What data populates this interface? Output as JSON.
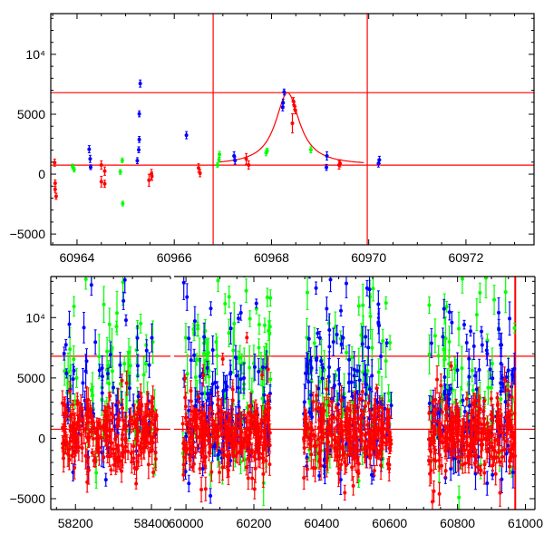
{
  "colors": {
    "red": "#ff0000",
    "green": "#00ff00",
    "blue": "#0000ff",
    "model": "#ff0000",
    "frame": "#000000"
  },
  "chart_data": [
    {
      "type": "scatter",
      "title": "",
      "xlabel": "",
      "ylabel": "",
      "xlim": [
        60963.46,
        60973.4
      ],
      "ylim": [
        -5900,
        13400
      ],
      "xticks": [
        60964,
        60966,
        60968,
        60970,
        60972
      ],
      "xtick_labels": [
        "60964",
        "60966",
        "60968",
        "60970",
        "60972"
      ],
      "yticks": [
        -5000,
        0,
        5000,
        10000
      ],
      "ytick_labels": [
        "−5000",
        "0",
        "5000",
        "10⁴"
      ],
      "hlines": [
        6800,
        750
      ],
      "vlines": [
        60966.8,
        60969.97
      ],
      "model_curve": {
        "type": "lorentzian-peak",
        "baseline": 750,
        "peak": 6800,
        "center": 60968.33,
        "hwhm": 0.3,
        "xrange": [
          60966.9,
          60969.9
        ]
      },
      "series": [
        {
          "name": "red",
          "points": [
            [
              60963.54,
              960,
              300
            ],
            [
              60963.55,
              -760,
              280
            ],
            [
              60963.55,
              -1270,
              250
            ],
            [
              60963.57,
              -1850,
              250
            ],
            [
              60964.5,
              760,
              350
            ],
            [
              60964.5,
              -630,
              450
            ],
            [
              60964.57,
              250,
              350
            ],
            [
              60964.57,
              -810,
              300
            ],
            [
              60965.48,
              -510,
              500
            ],
            [
              60965.53,
              0,
              400
            ],
            [
              60965.54,
              -180,
              350
            ],
            [
              60966.5,
              510,
              350
            ],
            [
              60966.53,
              80,
              300
            ],
            [
              60967.48,
              1270,
              450
            ],
            [
              60967.53,
              760,
              350
            ],
            [
              60968.43,
              4240,
              800
            ],
            [
              60968.45,
              6090,
              300
            ],
            [
              60968.47,
              5710,
              300
            ],
            [
              60968.49,
              5330,
              300
            ],
            [
              60969.39,
              760,
              350
            ],
            [
              60969.41,
              900,
              300
            ]
          ]
        },
        {
          "name": "green",
          "points": [
            [
              60963.91,
              630,
              200
            ],
            [
              60963.94,
              380,
              200
            ],
            [
              60964.89,
              180,
              200
            ],
            [
              60964.93,
              1140,
              200
            ],
            [
              60964.94,
              -2460,
              200
            ],
            [
              60966.89,
              760,
              200
            ],
            [
              60966.92,
              1200,
              200
            ],
            [
              60966.93,
              1650,
              250
            ],
            [
              60967.89,
              1780,
              250
            ],
            [
              60967.91,
              1950,
              200
            ],
            [
              60968.81,
              2030,
              250
            ]
          ]
        },
        {
          "name": "blue",
          "points": [
            [
              60964.25,
              2080,
              300
            ],
            [
              60964.27,
              1270,
              300
            ],
            [
              60964.28,
              580,
              200
            ],
            [
              60965.24,
              1120,
              250
            ],
            [
              60965.27,
              2030,
              250
            ],
            [
              60965.28,
              2890,
              250
            ],
            [
              60965.28,
              5030,
              250
            ],
            [
              60965.3,
              7560,
              300
            ],
            [
              60966.25,
              3250,
              300
            ],
            [
              60967.23,
              1520,
              350
            ],
            [
              60967.25,
              1140,
              300
            ],
            [
              60968.23,
              5580,
              300
            ],
            [
              60968.24,
              5960,
              300
            ],
            [
              60968.26,
              6850,
              250
            ],
            [
              60969.13,
              560,
              250
            ],
            [
              60969.14,
              1520,
              350
            ],
            [
              60970.2,
              890,
              300
            ],
            [
              60970.22,
              1190,
              300
            ]
          ]
        }
      ]
    },
    {
      "type": "scatter",
      "title": "",
      "xlabel": "",
      "ylabel": "",
      "broken_x_axis": true,
      "segments": [
        {
          "xlim": [
            58135,
            58450
          ],
          "xticks": [
            58200,
            58400
          ],
          "xtick_labels": [
            "58200",
            "58400"
          ]
        },
        {
          "xlim": [
            59965,
            61028
          ],
          "xticks": [
            60000,
            60200,
            60400,
            60600,
            60800,
            61000
          ],
          "xtick_labels": [
            "60000",
            "60200",
            "60400",
            "60600",
            "60800",
            "61000"
          ]
        }
      ],
      "ylim": [
        -5900,
        13400
      ],
      "yticks": [
        -5000,
        0,
        5000,
        10000
      ],
      "ytick_labels": [
        "−5000",
        "0",
        "5000",
        "10⁴"
      ],
      "hlines": [
        6800,
        750
      ],
      "vlines": [
        60970
      ],
      "seasons": [
        {
          "xrange": [
            58165,
            58415
          ],
          "counts": {
            "red": 260,
            "green": 70,
            "blue": 70
          }
        },
        {
          "xrange": [
            59990,
            60250
          ],
          "counts": {
            "red": 280,
            "green": 90,
            "blue": 120
          }
        },
        {
          "xrange": [
            60345,
            60605
          ],
          "counts": {
            "red": 260,
            "green": 80,
            "blue": 130
          }
        },
        {
          "xrange": [
            60715,
            60970
          ],
          "counts": {
            "red": 260,
            "green": 70,
            "blue": 110
          }
        }
      ]
    }
  ]
}
